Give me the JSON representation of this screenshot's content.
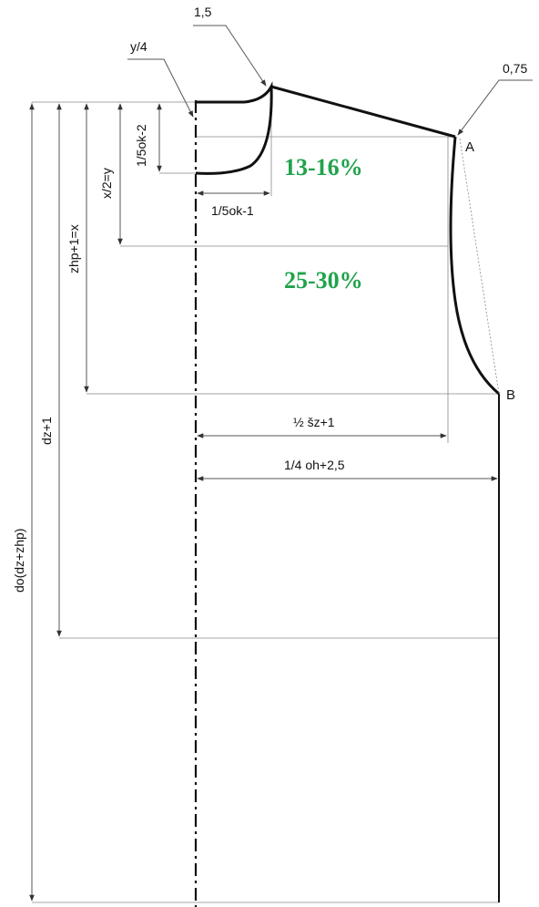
{
  "labels": {
    "top_mark": "1,5",
    "y4": "y/4",
    "shoulder_mark": "0,75",
    "point_a": "A",
    "point_b": "B",
    "neck_depth": "1/5ok-2",
    "neck_width": "1/5ok-1",
    "x2y": "x/2=y",
    "zhp": "zhp+1=x",
    "dz": "dz+1",
    "do": "do(dz+zhp)",
    "half_sz": "½ šz+1",
    "quarter_oh": "1/4 oh+2,5"
  },
  "annotations": {
    "upper_pct": "13-16%",
    "lower_pct": "25-30%"
  },
  "colors": {
    "annotation": "#1fa34a",
    "line": "#111111"
  }
}
